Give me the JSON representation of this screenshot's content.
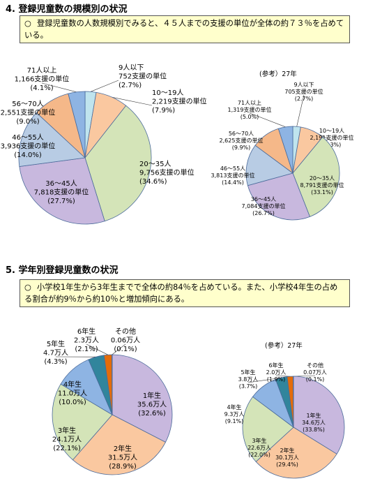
{
  "section4": {
    "title": "4. 登録児童数の規模別の状況",
    "bullet": "○",
    "note": "登録児童数の人数規模別でみると、４５人までの支援の単位が全体の約７３％を占めている。"
  },
  "section5": {
    "title": "5. 学年別登録児童数の状況",
    "bullet": "○",
    "note": "小学校1年生から3年生までで全体の約84％を占めている。また、小学校4年生の占める割合が約9％から約10％と増加傾向にある。"
  },
  "ref_label": "(参考）27年",
  "colors": {
    "lavender": "#c8b8de",
    "peach": "#fac8a0",
    "green": "#d4e4b8",
    "blue_light": "#b8cce4",
    "orange_light": "#f5b889",
    "blue": "#8eb4e3",
    "teal": "#31859c",
    "orange": "#e46c0a",
    "cyan_light": "#bfe4ee"
  },
  "chart_data": [
    {
      "type": "pie",
      "id": "size_current",
      "slices": [
        {
          "label": "9人以下",
          "value_text": "752支援の単位",
          "pct_text": "(2.7%)",
          "value": 2.7,
          "color": "#bfe4ee"
        },
        {
          "label": "10～19人",
          "value_text": "2,219支援の単位",
          "pct_text": "(7.9%)",
          "value": 7.9,
          "color": "#fac8a0"
        },
        {
          "label": "20～35人",
          "value_text": "9,756支援の単位",
          "pct_text": "(34.6%)",
          "value": 34.6,
          "color": "#d4e4b8"
        },
        {
          "label": "36～45人",
          "value_text": "7,818支援の単位",
          "pct_text": "(27.7%)",
          "value": 27.7,
          "color": "#c8b8de"
        },
        {
          "label": "46～55人",
          "value_text": "3,936支援の単位",
          "pct_text": "(14.0%)",
          "value": 14.0,
          "color": "#b8cce4"
        },
        {
          "label": "56～70人",
          "value_text": "2,551支援の単位",
          "pct_text": "(9.0%)",
          "value": 9.0,
          "color": "#f5b889"
        },
        {
          "label": "71人以上",
          "value_text": "1,166支援の単位",
          "pct_text": "(4.1%)",
          "value": 4.1,
          "color": "#8eb4e3"
        }
      ]
    },
    {
      "type": "pie",
      "id": "size_h27",
      "slices": [
        {
          "label": "9人以下",
          "value_text": "705支援の単位",
          "pct_text": "(2.7%)",
          "value": 2.7,
          "color": "#bfe4ee"
        },
        {
          "label": "10～19人",
          "value_text": "2,191支援の単位",
          "pct_text": "(8.3%)",
          "value": 8.3,
          "color": "#fac8a0"
        },
        {
          "label": "20～35人",
          "value_text": "8,791支援の単位",
          "pct_text": "(33.1%)",
          "value": 33.1,
          "color": "#d4e4b8"
        },
        {
          "label": "36～45人",
          "value_text": "7,084支援の単位",
          "pct_text": "(26.7%)",
          "value": 26.7,
          "color": "#c8b8de"
        },
        {
          "label": "46～55人",
          "value_text": "3,813支援の単位",
          "pct_text": "(14.4%)",
          "value": 14.4,
          "color": "#b8cce4"
        },
        {
          "label": "56～70人",
          "value_text": "2,625支援の単位",
          "pct_text": "(9.9%)",
          "value": 9.9,
          "color": "#f5b889"
        },
        {
          "label": "71人以上",
          "value_text": "1,319支援の単位",
          "pct_text": "(5.0%)",
          "value": 5.0,
          "color": "#8eb4e3"
        }
      ]
    },
    {
      "type": "pie",
      "id": "grade_current",
      "slices": [
        {
          "label": "1年生",
          "value_text": "35.6万人",
          "pct_text": "(32.6%)",
          "value": 32.6,
          "color": "#c8b8de"
        },
        {
          "label": "2年生",
          "value_text": "31.5万人",
          "pct_text": "(28.9%)",
          "value": 28.9,
          "color": "#fac8a0"
        },
        {
          "label": "3年生",
          "value_text": "24.1万人",
          "pct_text": "(22.1%)",
          "value": 22.1,
          "color": "#d4e4b8"
        },
        {
          "label": "4年生",
          "value_text": "11.0万人",
          "pct_text": "(10.0%)",
          "value": 10.0,
          "color": "#8eb4e3"
        },
        {
          "label": "5年生",
          "value_text": "4.7万人",
          "pct_text": "(4.3%)",
          "value": 4.3,
          "color": "#31859c"
        },
        {
          "label": "6年生",
          "value_text": "2.3万人",
          "pct_text": "(2.1%)",
          "value": 2.1,
          "color": "#e46c0a"
        },
        {
          "label": "その他",
          "value_text": "0.06万人",
          "pct_text": "(0.1%)",
          "value": 0.1,
          "color": "#f5b889"
        }
      ]
    },
    {
      "type": "pie",
      "id": "grade_h27",
      "slices": [
        {
          "label": "1年生",
          "value_text": "34.6万人",
          "pct_text": "(33.8%)",
          "value": 33.8,
          "color": "#c8b8de"
        },
        {
          "label": "2年生",
          "value_text": "30.1万人",
          "pct_text": "(29.4%)",
          "value": 29.4,
          "color": "#fac8a0"
        },
        {
          "label": "3年生",
          "value_text": "22.6万人",
          "pct_text": "(22.0%)",
          "value": 22.0,
          "color": "#d4e4b8"
        },
        {
          "label": "4年生",
          "value_text": "9.3万人",
          "pct_text": "(9.1%)",
          "value": 9.1,
          "color": "#8eb4e3"
        },
        {
          "label": "5年生",
          "value_text": "3.8万人",
          "pct_text": "(3.7%)",
          "value": 3.7,
          "color": "#31859c"
        },
        {
          "label": "6年生",
          "value_text": "2.0万人",
          "pct_text": "(1.9%)",
          "value": 1.9,
          "color": "#e46c0a"
        },
        {
          "label": "その他",
          "value_text": "0.07万人",
          "pct_text": "(0.1%)",
          "value": 0.1,
          "color": "#f5b889"
        }
      ]
    }
  ]
}
